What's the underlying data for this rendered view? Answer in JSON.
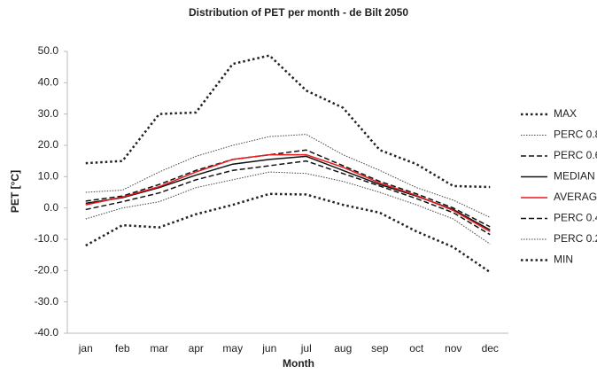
{
  "chart_data": {
    "type": "line",
    "title": "Distribution of PET per month - de Bilt 2050",
    "xlabel": "Month",
    "ylabel": "PET [°C]",
    "categories": [
      "jan",
      "feb",
      "mar",
      "apr",
      "may",
      "jun",
      "jul",
      "aug",
      "sep",
      "oct",
      "nov",
      "dec"
    ],
    "ylim": [
      -40,
      50
    ],
    "yticks": [
      {
        "value": -40,
        "label": "-40.0"
      },
      {
        "value": -30,
        "label": "-30.0"
      },
      {
        "value": -20,
        "label": "-20.0"
      },
      {
        "value": -10,
        "label": "-10.0"
      },
      {
        "value": 0,
        "label": "0.0"
      },
      {
        "value": 10,
        "label": "10.0"
      },
      {
        "value": 20,
        "label": "20.0"
      },
      {
        "value": 30,
        "label": "30.0"
      },
      {
        "value": 40,
        "label": "40.0"
      },
      {
        "value": 50,
        "label": "50.0"
      }
    ],
    "grid": false,
    "legend": "right",
    "series": [
      {
        "name": "MAX",
        "color": "#222222",
        "line_style": "dotted",
        "line_width": 2.5,
        "values": [
          14.3,
          15,
          30,
          30.5,
          46,
          48.7,
          37.5,
          32,
          18.5,
          14,
          7,
          6.7
        ]
      },
      {
        "name": "PERC 0.8",
        "color": "#444444",
        "line_style": "dotted",
        "line_width": 1,
        "values": [
          5,
          5.7,
          11.5,
          16.5,
          20,
          22.8,
          23.5,
          17,
          12,
          6.5,
          2.5,
          -3
        ]
      },
      {
        "name": "PERC 0.6",
        "color": "#111111",
        "line_style": "dashed",
        "line_width": 1.5,
        "values": [
          2.2,
          3.8,
          7.5,
          12,
          15.5,
          17,
          18.5,
          13.5,
          8.5,
          4.5,
          0,
          -6
        ]
      },
      {
        "name": "MEDIAN",
        "color": "#111111",
        "line_style": "solid",
        "line_width": 1.5,
        "values": [
          1.5,
          3.3,
          6.5,
          10.5,
          14,
          15.5,
          16.5,
          12,
          7.5,
          3.8,
          -0.5,
          -7
        ]
      },
      {
        "name": "AVERAGE",
        "color": "#e8191c",
        "line_style": "solid",
        "line_width": 1.5,
        "values": [
          1,
          3.5,
          6.8,
          11.5,
          15.5,
          17,
          17,
          13,
          8,
          4,
          -0.8,
          -7.5
        ]
      },
      {
        "name": "PERC 0.4",
        "color": "#111111",
        "line_style": "dashed",
        "line_width": 1.5,
        "values": [
          -0.5,
          2,
          4.8,
          9,
          12,
          13.5,
          15,
          11,
          7,
          3,
          -1.5,
          -8.5
        ]
      },
      {
        "name": "PERC 0.2",
        "color": "#444444",
        "line_style": "dotted",
        "line_width": 1,
        "values": [
          -3.5,
          0,
          2,
          6.5,
          9,
          11.5,
          11,
          8.5,
          5,
          1,
          -3.5,
          -11.5
        ]
      },
      {
        "name": "MIN",
        "color": "#222222",
        "line_style": "dotted",
        "line_width": 2.5,
        "values": [
          -12,
          -5.5,
          -6.2,
          -2,
          1,
          4.5,
          4.3,
          1,
          -1.5,
          -7.5,
          -12.5,
          -20.5
        ]
      }
    ]
  }
}
